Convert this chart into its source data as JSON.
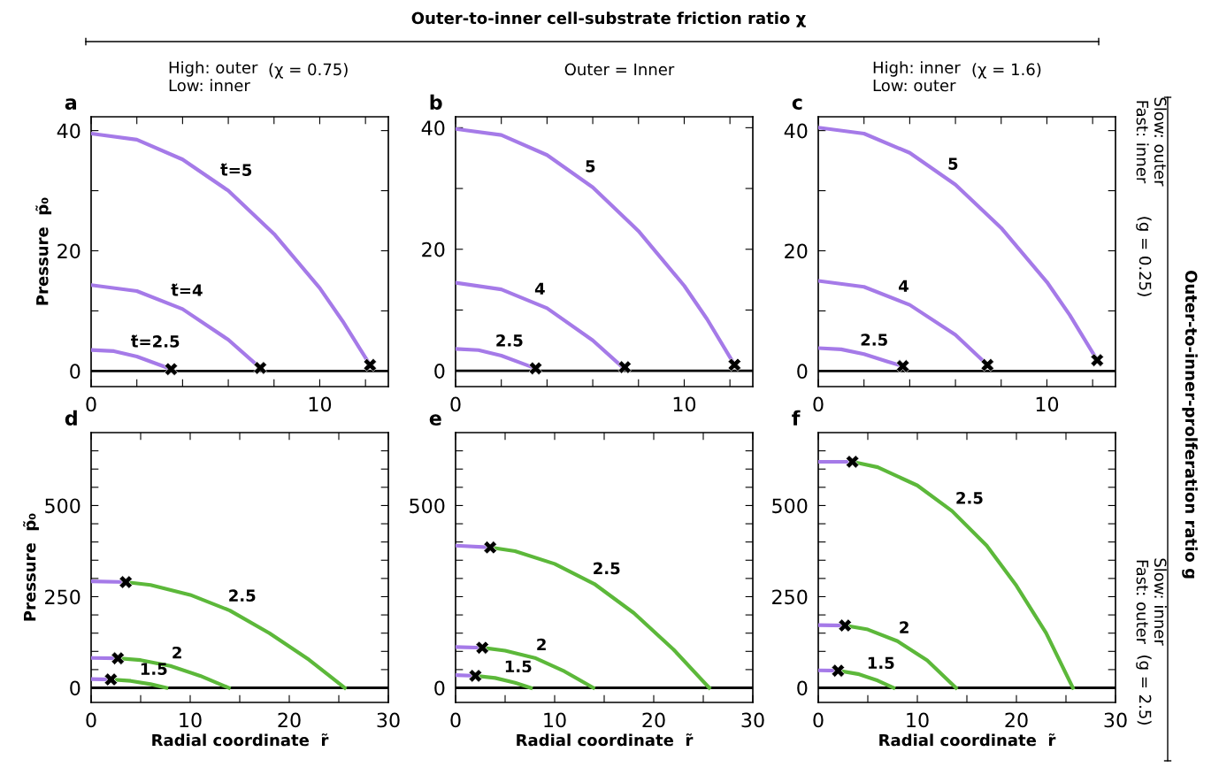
{
  "chart_data": [
    {
      "type": "line",
      "title": "a",
      "ylabel": "Pressure  p̃₀",
      "xlim": [
        0,
        13
      ],
      "ylim": [
        -2.6,
        42.3
      ],
      "xticks": [
        0,
        {
          "value": 2,
          "label": null
        },
        {
          "value": 4,
          "label": null
        },
        {
          "value": 6,
          "label": null
        },
        {
          "value": 8,
          "label": null
        },
        10,
        {
          "value": 12,
          "label": null
        }
      ],
      "yticks": [
        0,
        {
          "value": 10,
          "label": null
        },
        20,
        {
          "value": 30,
          "label": null
        },
        40
      ],
      "ref_lines": [
        {
          "axis": "y",
          "value": 0,
          "color": "#000000"
        }
      ],
      "series": [
        {
          "name": "t̃=5",
          "color": "#a57ae8",
          "x": [
            0,
            2,
            4,
            6,
            8,
            10,
            11,
            12.2
          ],
          "values": [
            39.5,
            38.5,
            35.2,
            30,
            22.8,
            13.8,
            8.3,
            1
          ]
        },
        {
          "name": "t̃=4",
          "color": "#a57ae8",
          "x": [
            0,
            2,
            4,
            6,
            7.4
          ],
          "values": [
            14.3,
            13.3,
            10.3,
            5.2,
            0.5
          ]
        },
        {
          "name": "t̃=2.5",
          "color": "#a57ae8",
          "x": [
            0,
            1,
            2,
            3,
            3.5
          ],
          "values": [
            3.5,
            3.3,
            2.4,
            1.0,
            0.3
          ]
        },
        {
          "type": "scatter",
          "color": "#000000",
          "marker": "cross",
          "x": [
            3.5,
            7.4,
            12.2
          ],
          "values": [
            0.3,
            0.5,
            1
          ]
        }
      ],
      "annotations": [
        "Outer-to-inner cell-substrate friction ratio χ",
        "High: outer\nLow: inner",
        "(χ = 0.75)"
      ]
    },
    {
      "type": "line",
      "title": "b",
      "xlim": [
        0,
        13
      ],
      "ylim": [
        -2.6,
        41.8
      ],
      "xticks": [
        0,
        {
          "value": 2,
          "label": null
        },
        {
          "value": 4,
          "label": null
        },
        {
          "value": 6,
          "label": null
        },
        {
          "value": 8,
          "label": null
        },
        10,
        {
          "value": 12,
          "label": null
        }
      ],
      "yticks": [
        0,
        {
          "value": 10,
          "label": null
        },
        20,
        {
          "value": 30,
          "label": null
        },
        40
      ],
      "ref_lines": [
        {
          "axis": "y",
          "value": 0,
          "color": "#000000"
        }
      ],
      "series": [
        {
          "name": "5",
          "color": "#a57ae8",
          "x": [
            0,
            2,
            4,
            6,
            8,
            10,
            11,
            12.2
          ],
          "values": [
            39.8,
            38.8,
            35.5,
            30.2,
            23,
            14,
            8.5,
            1
          ]
        },
        {
          "name": "4",
          "color": "#a57ae8",
          "x": [
            0,
            2,
            4,
            6,
            7.3
          ],
          "values": [
            14.5,
            13.4,
            10.3,
            5.0,
            0.6
          ]
        },
        {
          "name": "2.5",
          "color": "#a57ae8",
          "x": [
            0,
            1,
            2,
            3,
            3.5
          ],
          "values": [
            3.6,
            3.4,
            2.5,
            1.1,
            0.4
          ]
        },
        {
          "type": "scatter",
          "color": "#000000",
          "marker": "cross",
          "x": [
            3.5,
            7.4,
            12.2
          ],
          "values": [
            0.4,
            0.6,
            1
          ]
        }
      ],
      "annotations": [
        "Outer = Inner"
      ]
    },
    {
      "type": "line",
      "title": "c",
      "xlim": [
        0,
        13
      ],
      "ylim": [
        -2.6,
        42.3
      ],
      "xticks": [
        0,
        {
          "value": 2,
          "label": null
        },
        {
          "value": 4,
          "label": null
        },
        {
          "value": 6,
          "label": null
        },
        {
          "value": 8,
          "label": null
        },
        10,
        {
          "value": 12,
          "label": null
        }
      ],
      "yticks": [
        0,
        {
          "value": 10,
          "label": null
        },
        20,
        {
          "value": 30,
          "label": null
        },
        40
      ],
      "ref_lines": [
        {
          "axis": "y",
          "value": 0,
          "color": "#000000"
        }
      ],
      "series": [
        {
          "name": "5",
          "color": "#a57ae8",
          "x": [
            0,
            2,
            4,
            6,
            8,
            10,
            11,
            12.2
          ],
          "values": [
            40.5,
            39.5,
            36.3,
            31,
            23.8,
            14.8,
            9.3,
            1.8
          ]
        },
        {
          "name": "4",
          "color": "#a57ae8",
          "x": [
            0,
            2,
            4,
            6,
            7.4
          ],
          "values": [
            15,
            14,
            11,
            6,
            1.0
          ]
        },
        {
          "name": "2.5",
          "color": "#a57ae8",
          "x": [
            0,
            1,
            2,
            3,
            3.7
          ],
          "values": [
            3.8,
            3.6,
            2.8,
            1.6,
            0.8
          ]
        },
        {
          "type": "scatter",
          "color": "#000000",
          "marker": "cross",
          "x": [
            3.7,
            7.4,
            12.2
          ],
          "values": [
            0.8,
            1.0,
            1.8
          ]
        }
      ],
      "annotations": [
        "High: inner\nLow: outer",
        "(χ = 1.6)",
        "Outer-to-inner-prolferation ratio g",
        "Slow: outer\nFast: inner",
        "(g = 0.25)"
      ]
    },
    {
      "type": "line",
      "title": "d",
      "ylabel": "Pressure  p̃₀",
      "xlabel": "Radial coordinate  r̃",
      "xlim": [
        0,
        30
      ],
      "ylim": [
        -40,
        700
      ],
      "xticks": [
        0,
        {
          "value": 5,
          "label": null
        },
        10,
        {
          "value": 15,
          "label": null
        },
        20,
        {
          "value": 25,
          "label": null
        },
        30
      ],
      "yticks": [
        0,
        {
          "value": 50,
          "label": null
        },
        {
          "value": 100,
          "label": null
        },
        {
          "value": 150,
          "label": null
        },
        {
          "value": 200,
          "label": null
        },
        250,
        {
          "value": 300,
          "label": null
        },
        {
          "value": 350,
          "label": null
        },
        {
          "value": 400,
          "label": null
        },
        {
          "value": 450,
          "label": null
        },
        500,
        {
          "value": 550,
          "label": null
        },
        {
          "value": 600,
          "label": null
        },
        {
          "value": 650,
          "label": null
        }
      ],
      "ref_lines": [
        {
          "axis": "y",
          "value": 0,
          "color": "#000000"
        }
      ],
      "series": [
        {
          "color": "#a57ae8",
          "x": [
            0,
            3.5
          ],
          "values": [
            292,
            290
          ]
        },
        {
          "name": "2.5",
          "color": "#5cb83a",
          "x": [
            3.5,
            6,
            10,
            14,
            18,
            22,
            25.6
          ],
          "values": [
            290,
            282,
            255,
            212,
            150,
            77,
            0
          ]
        },
        {
          "color": "#a57ae8",
          "x": [
            0,
            2.7
          ],
          "values": [
            82,
            81
          ]
        },
        {
          "name": "2",
          "color": "#5cb83a",
          "x": [
            2.7,
            5,
            8,
            11,
            13.9
          ],
          "values": [
            81,
            76,
            60,
            33,
            0
          ]
        },
        {
          "color": "#a57ae8",
          "x": [
            0,
            2.0
          ],
          "values": [
            24,
            23
          ]
        },
        {
          "name": "1.5",
          "color": "#5cb83a",
          "x": [
            2.0,
            4,
            6,
            7.6
          ],
          "values": [
            23,
            19,
            10,
            0
          ]
        },
        {
          "type": "scatter",
          "color": "#000000",
          "marker": "cross",
          "x": [
            3.5,
            2.7,
            2.0
          ],
          "values": [
            290,
            81,
            23
          ]
        }
      ]
    },
    {
      "type": "line",
      "title": "e",
      "xlabel": "Radial coordinate  r̃",
      "xlim": [
        0,
        30
      ],
      "ylim": [
        -40,
        700
      ],
      "xticks": [
        0,
        {
          "value": 5,
          "label": null
        },
        10,
        {
          "value": 15,
          "label": null
        },
        20,
        {
          "value": 25,
          "label": null
        },
        30
      ],
      "yticks": [
        0,
        {
          "value": 50,
          "label": null
        },
        {
          "value": 100,
          "label": null
        },
        {
          "value": 150,
          "label": null
        },
        {
          "value": 200,
          "label": null
        },
        {
          "value": 250,
          "label": null
        },
        {
          "value": 300,
          "label": null
        },
        {
          "value": 350,
          "label": null
        },
        {
          "value": 400,
          "label": null
        },
        {
          "value": 450,
          "label": null
        },
        500,
        {
          "value": 550,
          "label": null
        },
        {
          "value": 600,
          "label": null
        },
        {
          "value": 650,
          "label": null
        }
      ],
      "ref_lines": [
        {
          "axis": "y",
          "value": 0,
          "color": "#000000"
        }
      ],
      "series": [
        {
          "color": "#a57ae8",
          "x": [
            0,
            3.5
          ],
          "values": [
            390,
            385
          ]
        },
        {
          "name": "2.5",
          "color": "#5cb83a",
          "x": [
            3.5,
            6,
            10,
            14,
            18,
            22,
            25.6
          ],
          "values": [
            385,
            375,
            340,
            285,
            205,
            105,
            0
          ]
        },
        {
          "color": "#a57ae8",
          "x": [
            0,
            2.7
          ],
          "values": [
            112,
            110
          ]
        },
        {
          "name": "2",
          "color": "#5cb83a",
          "x": [
            2.7,
            5,
            8,
            11,
            13.9
          ],
          "values": [
            110,
            102,
            82,
            45,
            0
          ]
        },
        {
          "color": "#a57ae8",
          "x": [
            0,
            2.0
          ],
          "values": [
            35,
            33
          ]
        },
        {
          "name": "1.5",
          "color": "#5cb83a",
          "x": [
            2.0,
            4,
            6,
            7.6
          ],
          "values": [
            33,
            27,
            14,
            0
          ]
        },
        {
          "type": "scatter",
          "color": "#000000",
          "marker": "cross",
          "x": [
            3.5,
            2.7,
            2.0
          ],
          "values": [
            385,
            110,
            33
          ]
        }
      ]
    },
    {
      "type": "line",
      "title": "f",
      "xlabel": "Radial coordinate  r̃",
      "xlim": [
        0,
        30
      ],
      "ylim": [
        -40,
        700
      ],
      "xticks": [
        0,
        {
          "value": 5,
          "label": null
        },
        10,
        {
          "value": 15,
          "label": null
        },
        20,
        {
          "value": 25,
          "label": null
        },
        30
      ],
      "yticks": [
        0,
        {
          "value": 50,
          "label": null
        },
        {
          "value": 100,
          "label": null
        },
        {
          "value": 150,
          "label": null
        },
        {
          "value": 200,
          "label": null
        },
        250,
        {
          "value": 300,
          "label": null
        },
        {
          "value": 350,
          "label": null
        },
        {
          "value": 400,
          "label": null
        },
        {
          "value": 450,
          "label": null
        },
        500,
        {
          "value": 550,
          "label": null
        },
        {
          "value": 600,
          "label": null
        },
        {
          "value": 650,
          "label": null
        }
      ],
      "ref_lines": [
        {
          "axis": "y",
          "value": 0,
          "color": "#000000"
        }
      ],
      "series": [
        {
          "color": "#a57ae8",
          "x": [
            0,
            3.45
          ],
          "values": [
            620,
            620
          ]
        },
        {
          "name": "2.5",
          "color": "#5cb83a",
          "x": [
            3.45,
            6,
            10,
            13.5,
            17,
            20,
            23,
            25.7
          ],
          "values": [
            620,
            605,
            555,
            485,
            390,
            280,
            150,
            0
          ]
        },
        {
          "color": "#a57ae8",
          "x": [
            0,
            2.7
          ],
          "values": [
            172,
            171
          ]
        },
        {
          "name": "2",
          "color": "#5cb83a",
          "x": [
            2.7,
            5,
            8,
            11,
            13.9
          ],
          "values": [
            171,
            160,
            128,
            75,
            0
          ]
        },
        {
          "color": "#a57ae8",
          "x": [
            0,
            2.0
          ],
          "values": [
            48,
            47
          ]
        },
        {
          "name": "1.5",
          "color": "#5cb83a",
          "x": [
            2.0,
            4,
            6,
            7.6
          ],
          "values": [
            47,
            38,
            20,
            0
          ]
        },
        {
          "type": "scatter",
          "color": "#000000",
          "marker": "cross",
          "x": [
            3.45,
            2.7,
            2.0
          ],
          "values": [
            620,
            171,
            47
          ]
        }
      ],
      "annotations": [
        "Slow: inner\nFast: outer",
        "(g = 2.5)"
      ]
    }
  ]
}
